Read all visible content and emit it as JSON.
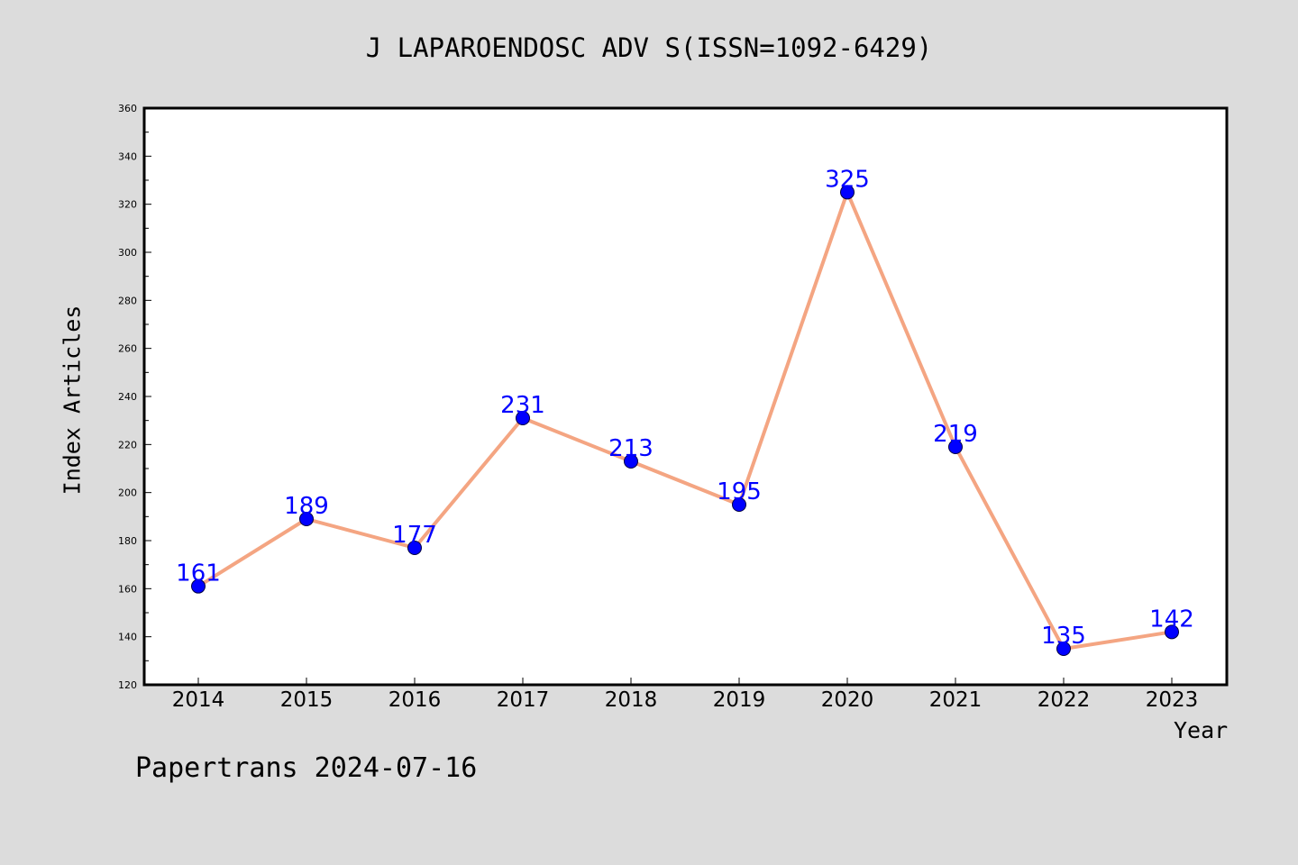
{
  "chart_data": {
    "type": "line",
    "title": "J LAPAROENDOSC ADV S(ISSN=1092-6429)",
    "xlabel": "Year",
    "ylabel": "Index Articles",
    "categories": [
      "2014",
      "2015",
      "2016",
      "2017",
      "2018",
      "2019",
      "2020",
      "2021",
      "2022",
      "2023"
    ],
    "series": [
      {
        "values": [
          161,
          189,
          177,
          231,
          213,
          195,
          325,
          219,
          135,
          142
        ]
      }
    ],
    "ylim": [
      120,
      360
    ],
    "yticks": [
      120,
      140,
      160,
      180,
      200,
      220,
      240,
      260,
      280,
      300,
      320,
      340,
      360
    ],
    "grid": false,
    "colors": {
      "line": "#f4a582",
      "marker": "#0000ff",
      "data_label": "#0000ff",
      "background": "#dcdcdc",
      "plot_area": "#ffffff"
    }
  },
  "footer": "Papertrans 2024-07-16"
}
